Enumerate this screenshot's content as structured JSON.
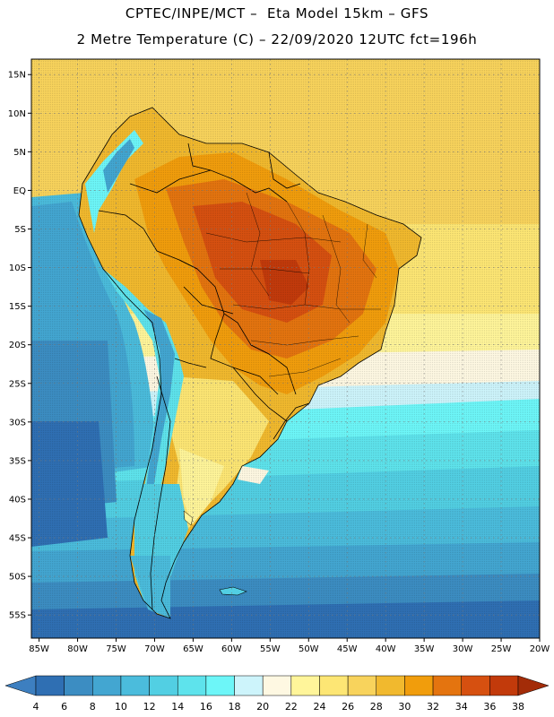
{
  "title": {
    "line1": "CPTEC/INPE/MCT –  Eta Model 15km – GFS",
    "line2": "2 Metre Temperature (C) – 22/09/2020 12UTC fct=196h"
  },
  "map": {
    "lon_range": [
      -86,
      -20
    ],
    "lat_range": [
      -58,
      17
    ],
    "lat_ticks": [
      "15N",
      "10N",
      "5N",
      "EQ",
      "5S",
      "10S",
      "15S",
      "20S",
      "25S",
      "30S",
      "35S",
      "40S",
      "45S",
      "50S",
      "55S"
    ],
    "lon_ticks": [
      "85W",
      "80W",
      "75W",
      "70W",
      "65W",
      "60W",
      "55W",
      "50W",
      "45W",
      "40W",
      "35W",
      "30W",
      "25W",
      "20W"
    ]
  },
  "colorbar": {
    "labels": [
      "4",
      "6",
      "8",
      "10",
      "12",
      "14",
      "16",
      "18",
      "20",
      "22",
      "24",
      "26",
      "28",
      "30",
      "32",
      "34",
      "36",
      "38"
    ],
    "colors": [
      "#3d7fc0",
      "#2f6fb3",
      "#3c8dc2",
      "#43a6d1",
      "#4bbcdc",
      "#52cfe3",
      "#5ee3ec",
      "#6df6f8",
      "#cdf4fb",
      "#fef8e2",
      "#fff59a",
      "#fde674",
      "#f8d35c",
      "#f1b92e",
      "#f19d0c",
      "#e4740f",
      "#d65010",
      "#c23a0b",
      "#a32c08"
    ]
  }
}
